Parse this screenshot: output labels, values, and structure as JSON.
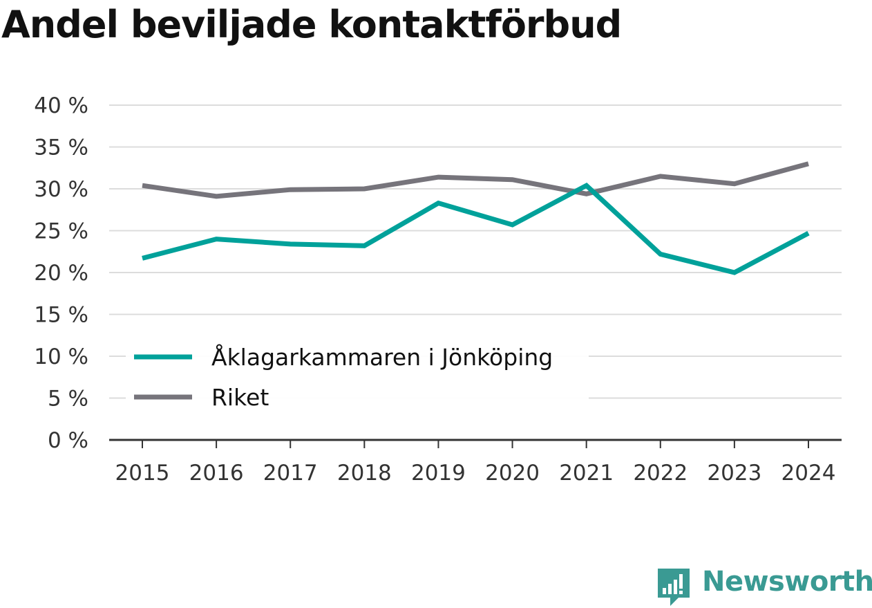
{
  "title": "Andel beviljade kontaktförbud",
  "brand": {
    "name": "Newsworthy",
    "color": "#3a9a93"
  },
  "chart_data": {
    "type": "line",
    "title": "Andel beviljade kontaktförbud",
    "xlabel": "",
    "ylabel": "",
    "x": [
      "2015",
      "2016",
      "2017",
      "2018",
      "2019",
      "2020",
      "2021",
      "2022",
      "2023",
      "2024"
    ],
    "ylim": [
      0,
      40
    ],
    "yticks": [
      0,
      5,
      10,
      15,
      20,
      25,
      30,
      35,
      40
    ],
    "yticklabels": [
      "0 %",
      "5 %",
      "10 %",
      "15 %",
      "20 %",
      "25 %",
      "30 %",
      "35 %",
      "40 %"
    ],
    "grid": true,
    "legend": "bottom-left",
    "series": [
      {
        "name": "Åklagarkammaren i Jönköping",
        "color": "#00a19a",
        "values": [
          21.7,
          24.0,
          23.4,
          23.2,
          28.3,
          25.7,
          30.4,
          22.2,
          20.0,
          24.7
        ]
      },
      {
        "name": "Riket",
        "color": "#76747b",
        "values": [
          30.4,
          29.1,
          29.9,
          30.0,
          31.4,
          31.1,
          29.4,
          31.5,
          30.6,
          33.0
        ]
      }
    ]
  }
}
